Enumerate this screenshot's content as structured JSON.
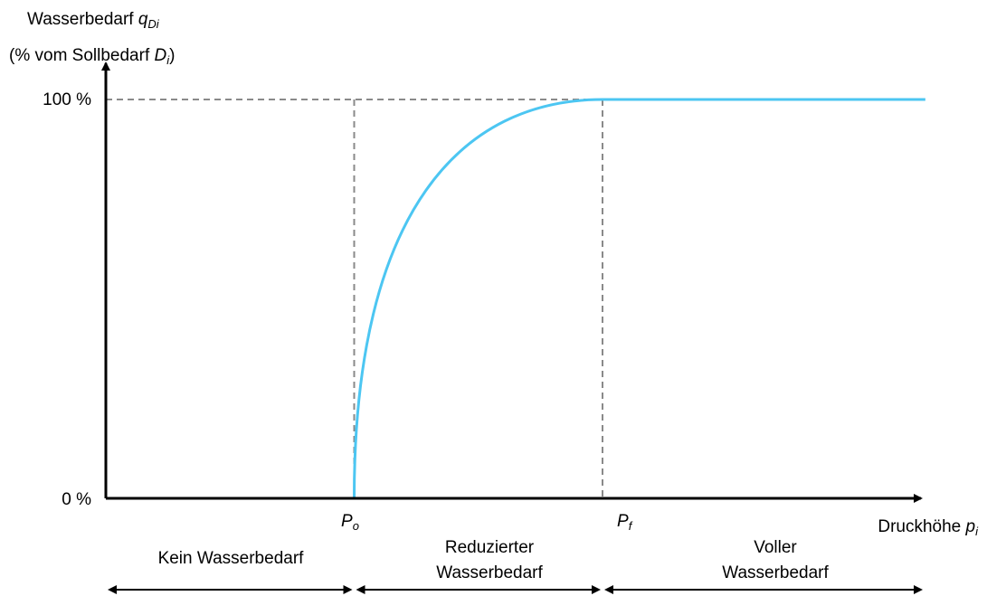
{
  "chart_data": {
    "type": "line",
    "ylabel": {
      "line1_prefix": "Wasserbedarf ",
      "line1_symbol": "q",
      "line1_sub": "Di",
      "line2_prefix": "(% vom Sollbedarf ",
      "line2_symbol": "D",
      "line2_sub": "i",
      "line2_suffix": ")"
    },
    "xlabel": {
      "prefix": "Druckhöhe ",
      "symbol": "p",
      "sub": "i"
    },
    "y_ticks": [
      "0 %",
      "100 %"
    ],
    "x_ticks": [
      {
        "symbol": "P",
        "sub": "o",
        "x": 1
      },
      {
        "symbol": "P",
        "sub": "f",
        "x": 2
      }
    ],
    "xlim": [
      0,
      3.3
    ],
    "ylim": [
      0,
      100
    ],
    "series": [
      {
        "color": "#4cc6f2",
        "segments": [
          {
            "kind": "flat",
            "x": [
              0,
              1
            ],
            "y": 0
          },
          {
            "kind": "curve",
            "x": [
              1,
              2
            ],
            "y": [
              0,
              100
            ]
          },
          {
            "kind": "flat",
            "x": [
              2,
              3.3
            ],
            "y": 100
          }
        ]
      }
    ],
    "reference_lines": {
      "color": "#8a8a8a",
      "style": "dashed"
    },
    "regions": [
      {
        "label_lines": [
          "Kein Wasserbedarf"
        ],
        "x": [
          0,
          1
        ]
      },
      {
        "label_lines": [
          "Reduzierter",
          "Wasserbedarf"
        ],
        "x": [
          1,
          2
        ]
      },
      {
        "label_lines": [
          "Voller",
          "Wasserbedarf"
        ],
        "x": [
          2,
          3.3
        ]
      }
    ],
    "grid": false,
    "legend": "none"
  }
}
